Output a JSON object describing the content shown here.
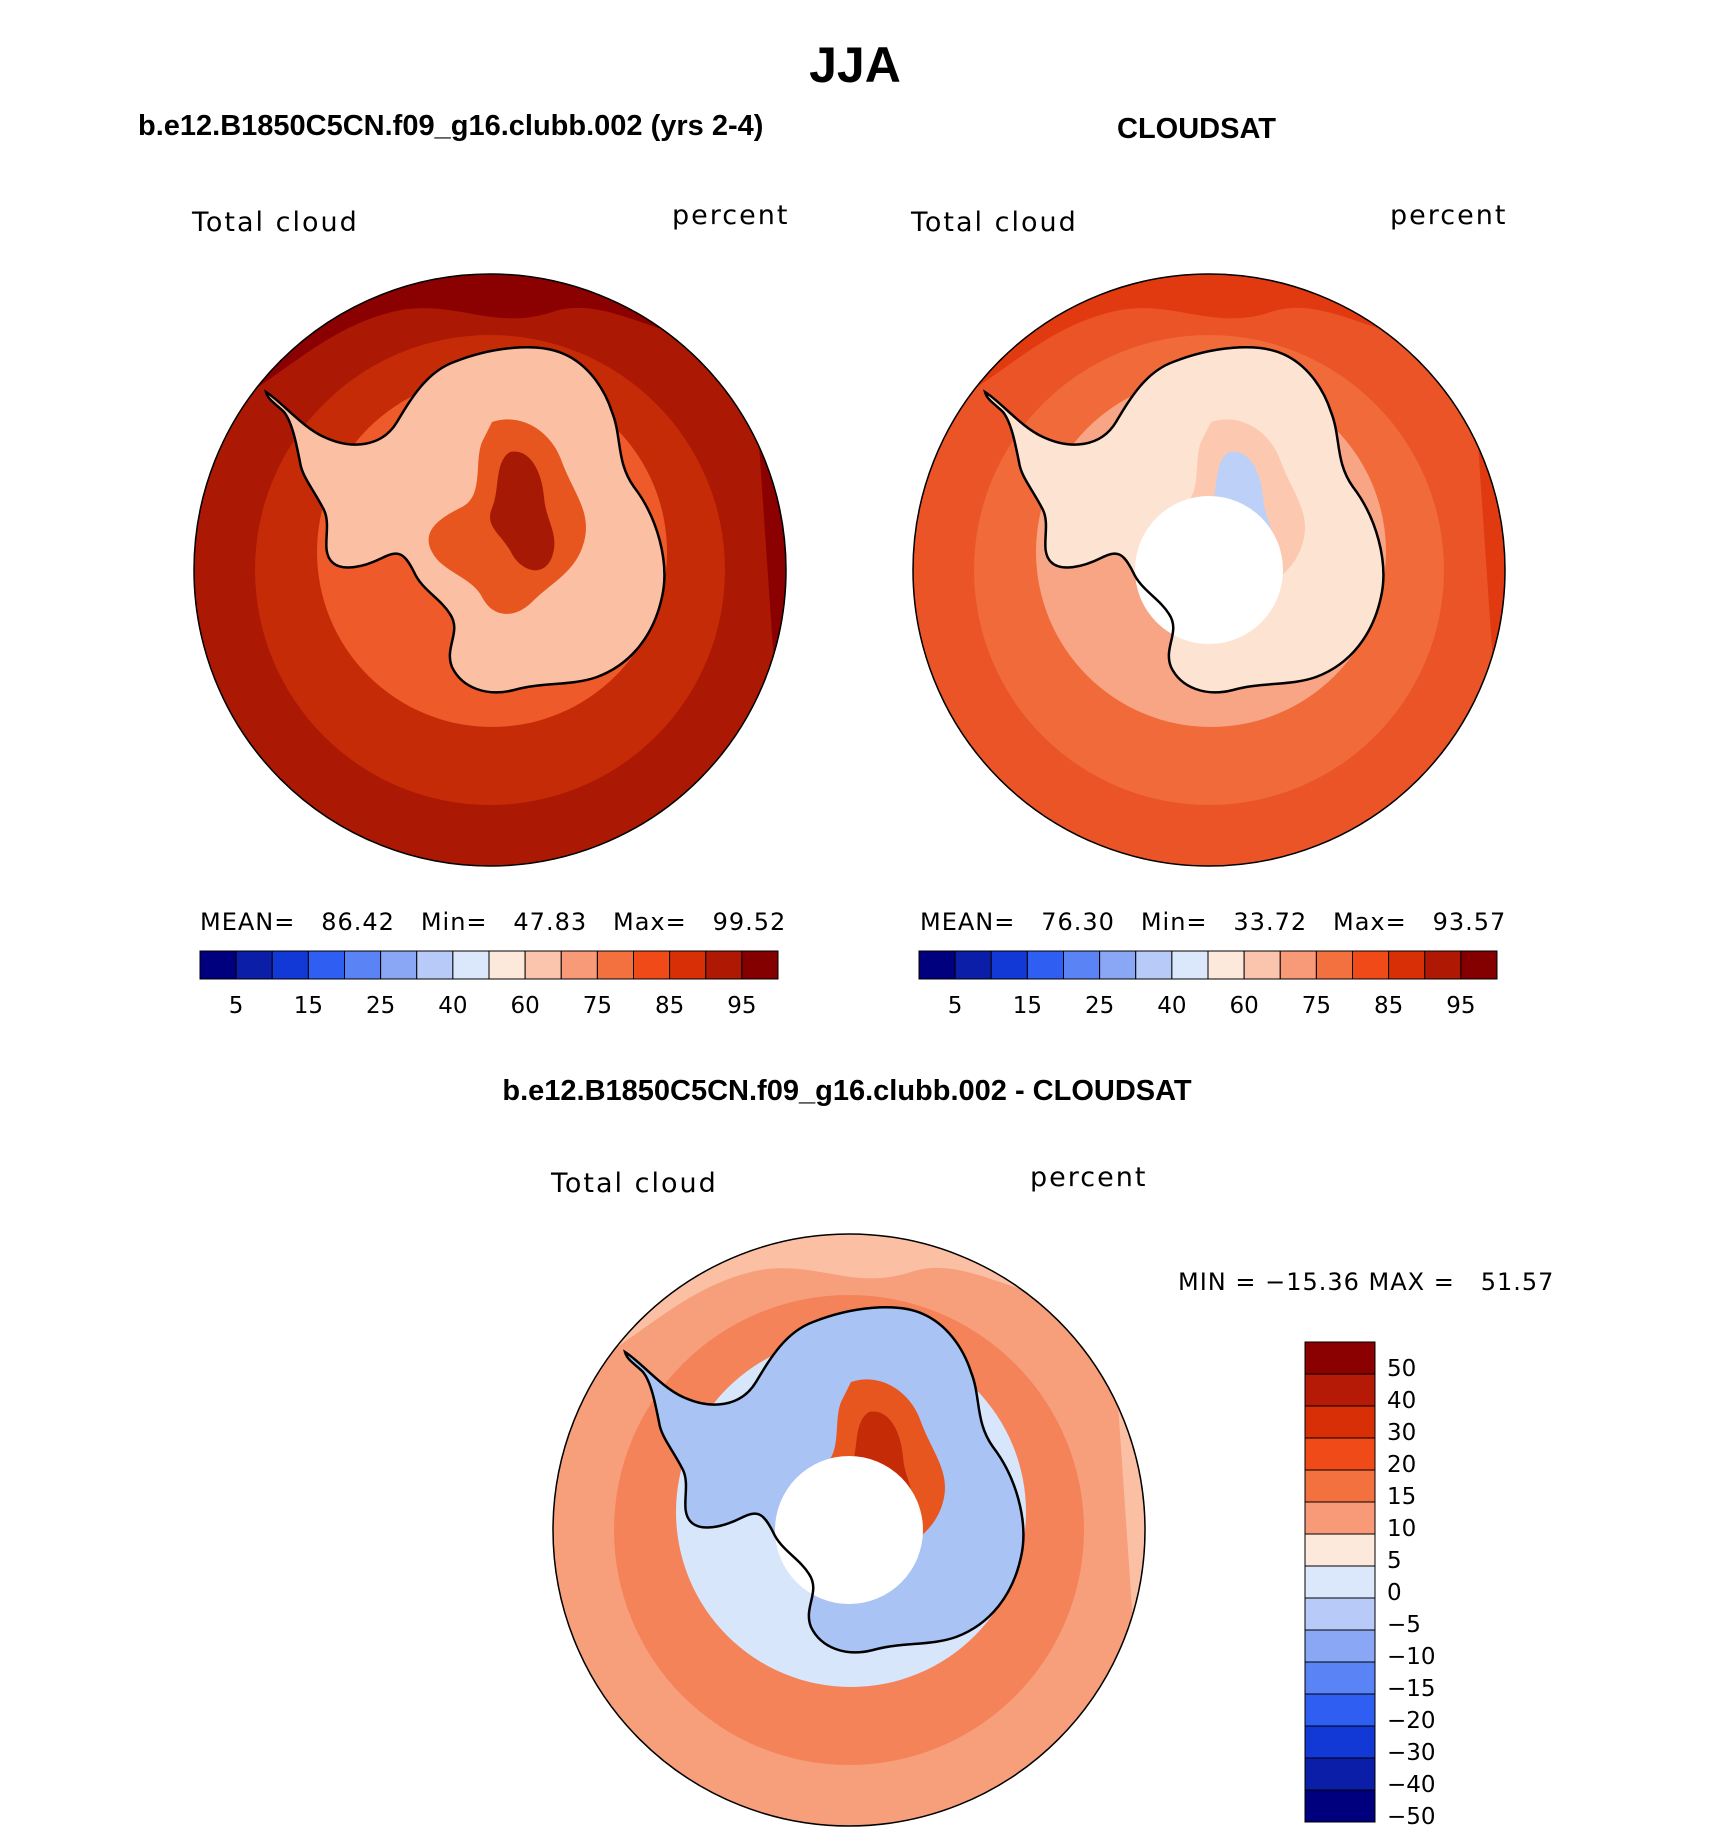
{
  "title": "JJA",
  "panels": [
    {
      "subtitle": "b.e12.B1850C5CN.f09_g16.clubb.002 (yrs 2-4)",
      "left_label": "Total cloud",
      "right_label": "percent",
      "stats_text": "MEAN=   86.42   Min=   47.83   Max=   99.52",
      "has_pole_hole": false,
      "ocean_color": "#b01804",
      "colors": {
        "outer": "#8b0000",
        "mid": "#c62b07",
        "coast": "#ee5a2a",
        "ice": "#fbbfa4",
        "interior": "#e8561f",
        "deep": "#a61904"
      }
    },
    {
      "subtitle": "CLOUDSAT",
      "left_label": "Total cloud",
      "right_label": "percent",
      "stats_text": "MEAN=   76.30   Min=   33.72   Max=   93.57",
      "has_pole_hole": true,
      "ocean_color": "#e03a10",
      "colors": {
        "outer": "#e23a10",
        "mid": "#f06a3a",
        "coast": "#f8a585",
        "ice": "#fde3d2",
        "interior": "#fcc9b0",
        "deep": "#bcd0f8"
      }
    }
  ],
  "diff_panel": {
    "subtitle": "b.e12.B1850C5CN.f09_g16.clubb.002 - CLOUDSAT",
    "left_label": "Total cloud",
    "right_label": "percent",
    "minmax_text": "MIN = −15.36 MAX =   51.57",
    "has_pole_hole": true,
    "colors": {
      "outer": "#fbbfa4",
      "mid": "#f4835a",
      "coast": "#d7e6fb",
      "ice": "#a9c3f5",
      "interior": "#e8561f",
      "deep": "#c62b07"
    }
  },
  "colorbar_h": {
    "colors": [
      "#00007f",
      "#0a1ea8",
      "#1239d6",
      "#2f5ff2",
      "#5a84f5",
      "#8aa7f6",
      "#b8cbf8",
      "#dbe7fb",
      "#fde8dc",
      "#fbc5ad",
      "#f89a77",
      "#f3703f",
      "#ef4a17",
      "#d92f07",
      "#af1803",
      "#840000"
    ],
    "tick_labels": [
      "5",
      "15",
      "25",
      "40",
      "60",
      "75",
      "85",
      "95"
    ]
  },
  "colorbar_v": {
    "colors": [
      "#8b0000",
      "#b41a06",
      "#d92f07",
      "#ef4a17",
      "#f3703f",
      "#f89a77",
      "#fde8dc",
      "#dbe7fb",
      "#b8cbf8",
      "#8aa7f6",
      "#5a84f5",
      "#2f5ff2",
      "#1239d6",
      "#0a1ea8",
      "#00007f"
    ],
    "tick_labels": [
      "50",
      "40",
      "30",
      "20",
      "15",
      "10",
      "5",
      "0",
      "−5",
      "−10",
      "−15",
      "−20",
      "−30",
      "−40",
      "−50"
    ]
  },
  "chart_data": [
    {
      "type": "heatmap",
      "title": "b.e12.B1850C5CN.f09_g16.clubb.002 (yrs 2-4)",
      "variable": "Total cloud",
      "units": "percent",
      "projection": "south polar stereographic",
      "season": "JJA",
      "mean": 86.42,
      "min": 47.83,
      "max": 99.52,
      "contour_levels": [
        5,
        10,
        15,
        20,
        25,
        30,
        40,
        50,
        60,
        70,
        75,
        80,
        85,
        90,
        95
      ],
      "colorbar_labels": [
        5,
        15,
        25,
        40,
        60,
        75,
        85,
        95
      ]
    },
    {
      "type": "heatmap",
      "title": "CLOUDSAT",
      "variable": "Total cloud",
      "units": "percent",
      "projection": "south polar stereographic",
      "season": "JJA",
      "mean": 76.3,
      "min": 33.72,
      "max": 93.57,
      "contour_levels": [
        5,
        10,
        15,
        20,
        25,
        30,
        40,
        50,
        60,
        70,
        75,
        80,
        85,
        90,
        95
      ],
      "colorbar_labels": [
        5,
        15,
        25,
        40,
        60,
        75,
        85,
        95
      ]
    },
    {
      "type": "heatmap",
      "title": "b.e12.B1850C5CN.f09_g16.clubb.002 - CLOUDSAT",
      "variable": "Total cloud",
      "units": "percent",
      "projection": "south polar stereographic",
      "season": "JJA",
      "min": -15.36,
      "max": 51.57,
      "contour_levels": [
        -50,
        -40,
        -30,
        -20,
        -15,
        -10,
        -5,
        0,
        5,
        10,
        15,
        20,
        30,
        40,
        50
      ],
      "colorbar_labels": [
        50,
        40,
        30,
        20,
        15,
        10,
        5,
        0,
        -5,
        -10,
        -15,
        -20,
        -30,
        -40,
        -50
      ]
    }
  ]
}
